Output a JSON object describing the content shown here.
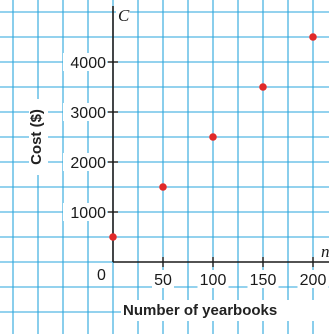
{
  "chart_data": {
    "type": "scatter",
    "x_axis": {
      "title": "Number of yearbooks",
      "variable": "n",
      "ticks": [
        0,
        50,
        100,
        150,
        200
      ],
      "tick_labels": [
        "50",
        "100",
        "150",
        "200"
      ],
      "range": [
        0,
        200
      ]
    },
    "y_axis": {
      "title": "Cost ($)",
      "variable": "C",
      "ticks": [
        1000,
        2000,
        3000,
        4000
      ],
      "tick_labels": [
        "1000",
        "2000",
        "3000",
        "4000"
      ],
      "range": [
        0,
        4500
      ]
    },
    "origin_label": "0",
    "grid": true,
    "colors": {
      "grid": "#2aa6dc",
      "axis": "#1a1a1a",
      "point": "#e02a2a"
    },
    "points": [
      {
        "x": 0,
        "y": 500
      },
      {
        "x": 50,
        "y": 1500
      },
      {
        "x": 100,
        "y": 2500
      },
      {
        "x": 150,
        "y": 3500
      },
      {
        "x": 200,
        "y": 4500
      }
    ]
  }
}
